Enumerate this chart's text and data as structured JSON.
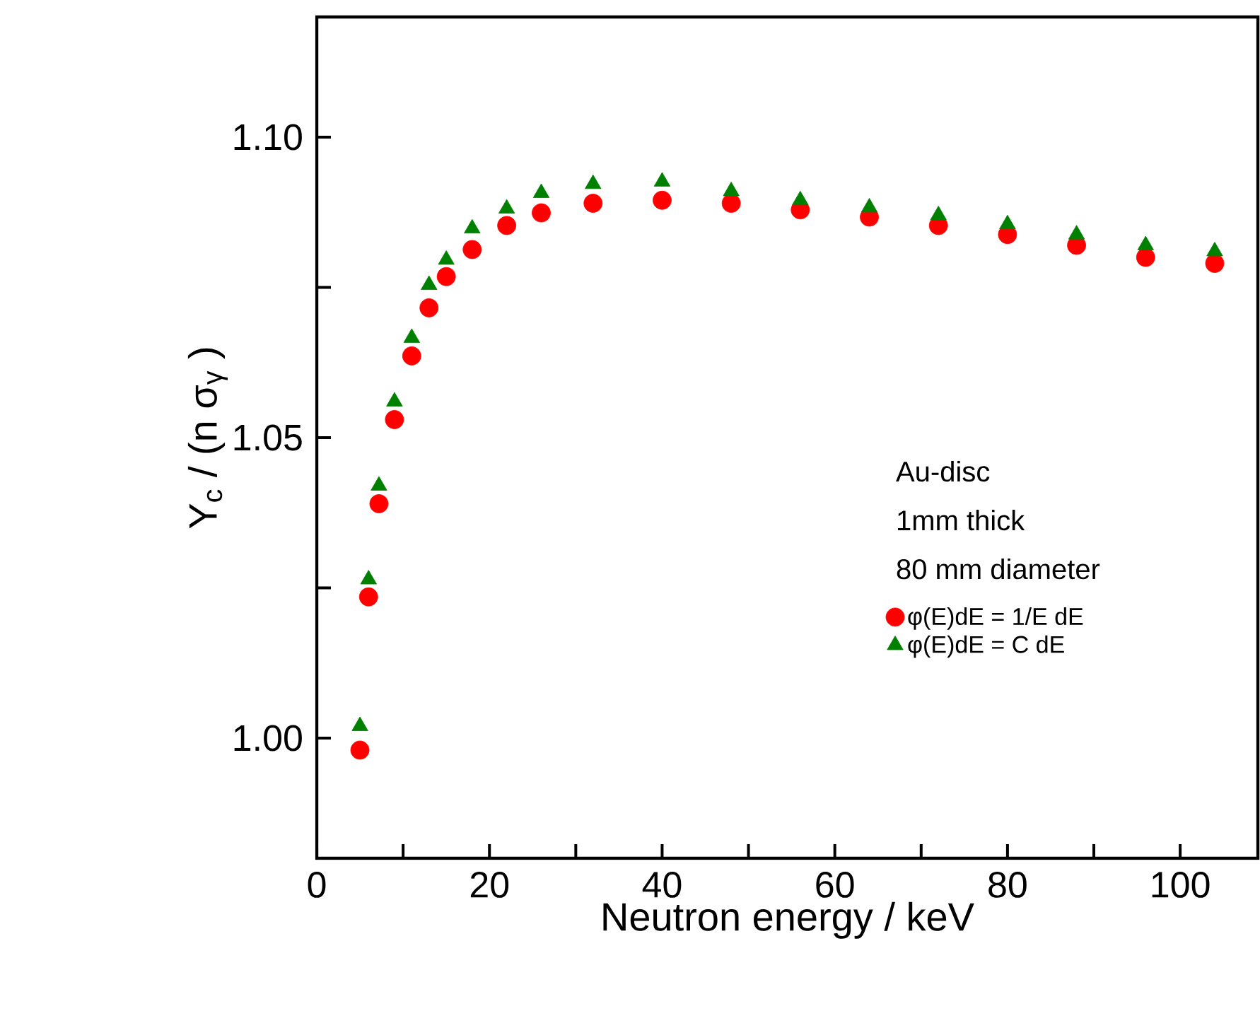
{
  "chart_data": {
    "type": "scatter",
    "xlabel": "Neutron  energy / keV",
    "ylabel": "Y$_{c}$ / (n σ$_{γ}$ )",
    "x": [
      5,
      6,
      7.2,
      9,
      11,
      13,
      15,
      18,
      22,
      26,
      32,
      40,
      48,
      56,
      64,
      72,
      80,
      88,
      96,
      104
    ],
    "series": [
      {
        "name": "φ(E)dE = 1/E dE",
        "color": "#ff0000",
        "marker": "circle",
        "values": [
          0.998,
          1.0235,
          1.039,
          1.053,
          1.0636,
          1.0716,
          1.0768,
          1.0813,
          1.0853,
          1.0874,
          1.089,
          1.0895,
          1.089,
          1.0879,
          1.0867,
          1.0853,
          1.0838,
          1.082,
          1.08,
          1.079
        ]
      },
      {
        "name": "φ(E)dE = C dE",
        "color": "#008000",
        "marker": "triangle",
        "values": [
          1.002,
          1.0264,
          1.042,
          1.056,
          1.0666,
          1.0754,
          1.0796,
          1.0848,
          1.0881,
          1.0907,
          1.0922,
          1.0926,
          1.091,
          1.0895,
          1.0883,
          1.087,
          1.0855,
          1.0838,
          1.082,
          1.081
        ]
      }
    ],
    "xlim": [
      0,
      109
    ],
    "ylim": [
      0.98,
      1.12
    ],
    "xticks": [
      0,
      {
        "value": 10,
        "label": null
      },
      20,
      {
        "value": 30,
        "label": null
      },
      40,
      {
        "value": 50,
        "label": null
      },
      60,
      {
        "value": 70,
        "label": null
      },
      80,
      {
        "value": 90,
        "label": null
      },
      100
    ],
    "yticks": [
      {
        "value": 1.0,
        "label": "1.00"
      },
      {
        "value": 1.025,
        "label": null
      },
      {
        "value": 1.05,
        "label": "1.05"
      },
      {
        "value": 1.075,
        "label": null
      },
      {
        "value": 1.1,
        "label": "1.10"
      }
    ],
    "annotations": [
      "Au-disc",
      "1mm thick",
      "80 mm diameter"
    ],
    "legend": "right",
    "grid": false
  }
}
